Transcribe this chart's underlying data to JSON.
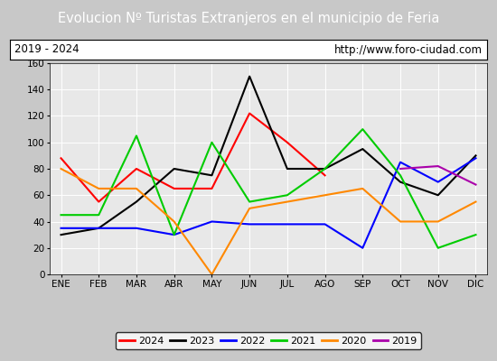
{
  "title": "Evolucion Nº Turistas Extranjeros en el municipio de Feria",
  "subtitle_left": "2019 - 2024",
  "subtitle_right": "http://www.foro-ciudad.com",
  "months": [
    "ENE",
    "FEB",
    "MAR",
    "ABR",
    "MAY",
    "JUN",
    "JUL",
    "AGO",
    "SEP",
    "OCT",
    "NOV",
    "DIC"
  ],
  "series": {
    "2024": [
      88,
      55,
      80,
      65,
      65,
      122,
      100,
      75,
      null,
      null,
      null,
      null
    ],
    "2023": [
      30,
      35,
      55,
      80,
      75,
      150,
      80,
      80,
      95,
      70,
      60,
      90
    ],
    "2022": [
      35,
      35,
      35,
      30,
      40,
      38,
      38,
      38,
      20,
      85,
      70,
      88
    ],
    "2021": [
      45,
      45,
      105,
      30,
      100,
      55,
      60,
      80,
      110,
      75,
      20,
      30
    ],
    "2020": [
      80,
      65,
      65,
      40,
      0,
      50,
      55,
      60,
      65,
      40,
      40,
      55
    ],
    "2019": [
      null,
      null,
      null,
      null,
      null,
      null,
      null,
      null,
      null,
      80,
      82,
      68
    ]
  },
  "colors": {
    "2024": "#ff0000",
    "2023": "#000000",
    "2022": "#0000ff",
    "2021": "#00cc00",
    "2020": "#ff8800",
    "2019": "#aa00aa"
  },
  "ylim": [
    0,
    160
  ],
  "yticks": [
    0,
    20,
    40,
    60,
    80,
    100,
    120,
    140,
    160
  ],
  "title_bg": "#5588bb",
  "subtitle_bg": "#ffffff",
  "outer_bg": "#c8c8c8",
  "plot_bg": "#e8e8e8"
}
